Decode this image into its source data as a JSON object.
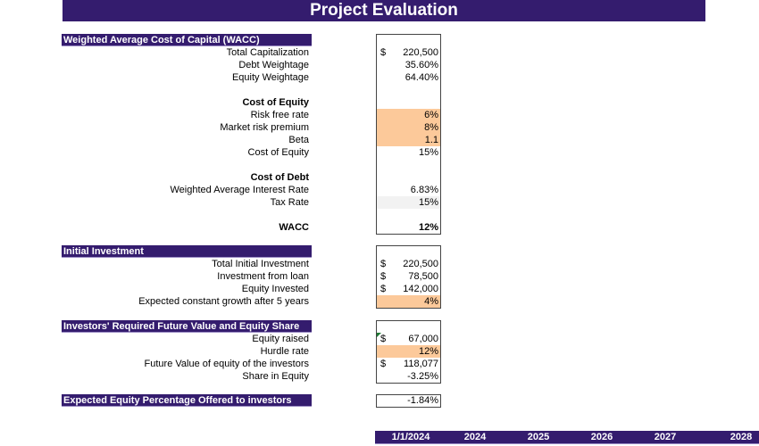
{
  "title": "Project Evaluation",
  "colors": {
    "header": "#341c6e",
    "input": "#fcc99a"
  },
  "wacc": {
    "header": "Weighted Average Cost of Capital (WACC)",
    "total_cap": {
      "label": "Total Capitalization",
      "cur": "$",
      "value": "220,500"
    },
    "debt_w": {
      "label": "Debt Weightage",
      "value": "35.60%"
    },
    "equity_w": {
      "label": "Equity Weightage",
      "value": "64.40%"
    },
    "coe_title": "Cost of Equity",
    "rf": {
      "label": "Risk free rate",
      "value": "6%"
    },
    "mrp": {
      "label": "Market risk premium",
      "value": "8%"
    },
    "beta": {
      "label": "Beta",
      "value": "1.1"
    },
    "coe": {
      "label": "Cost of Equity",
      "value": "15%"
    },
    "cod_title": "Cost of Debt",
    "wair": {
      "label": "Weighted Average Interest Rate",
      "value": "6.83%"
    },
    "tax": {
      "label": "Tax Rate",
      "value": "15%"
    },
    "wacc": {
      "label": "WACC",
      "value": "12%"
    }
  },
  "initial": {
    "header": "Initial Investment",
    "total": {
      "label": "Total Initial Investment",
      "cur": "$",
      "value": "220,500"
    },
    "loan": {
      "label": "Investment from loan",
      "cur": "$",
      "value": "78,500"
    },
    "equity": {
      "label": "Equity Invested",
      "cur": "$",
      "value": "142,000"
    },
    "growth": {
      "label": "Expected constant growth after 5 years",
      "value": "4%"
    }
  },
  "investors": {
    "header": "Investors' Required Future Value and Equity Share",
    "raised": {
      "label": "Equity raised",
      "cur": "$",
      "value": "67,000"
    },
    "hurdle": {
      "label": "Hurdle rate",
      "value": "12%"
    },
    "fv": {
      "label": "Future Value of equity of the investors",
      "cur": "$",
      "value": "118,077"
    },
    "share": {
      "label": "Share in Equity",
      "value": "-3.25%"
    }
  },
  "expected": {
    "header": "Expected Equity Percentage Offered to investors",
    "value": "-1.84%"
  },
  "timeline": [
    "1/1/2024",
    "2024",
    "2025",
    "2026",
    "2027",
    "2028"
  ]
}
